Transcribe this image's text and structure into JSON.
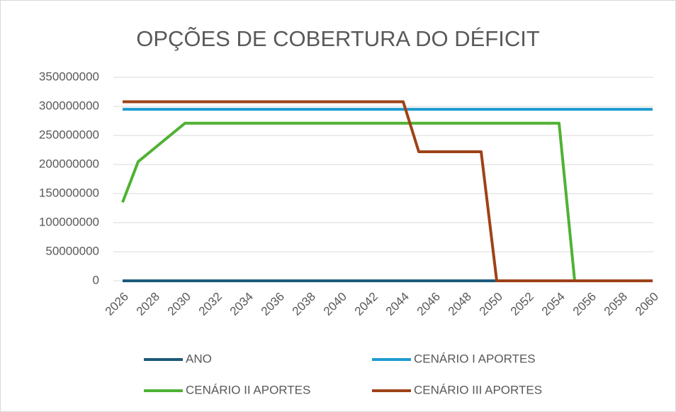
{
  "chart_data": {
    "type": "line",
    "title": "OPÇÕES DE COBERTURA DO DÉFICIT",
    "x": [
      2026,
      2027,
      2028,
      2029,
      2030,
      2031,
      2032,
      2033,
      2034,
      2035,
      2036,
      2037,
      2038,
      2039,
      2040,
      2041,
      2042,
      2043,
      2044,
      2045,
      2046,
      2047,
      2048,
      2049,
      2050,
      2051,
      2052,
      2053,
      2054,
      2055,
      2056,
      2057,
      2058,
      2059,
      2060
    ],
    "xlim": [
      2026,
      2060
    ],
    "xticks": [
      2026,
      2028,
      2030,
      2032,
      2034,
      2036,
      2038,
      2040,
      2042,
      2044,
      2046,
      2048,
      2050,
      2052,
      2054,
      2056,
      2058,
      2060
    ],
    "ylim": [
      0,
      350000000
    ],
    "yticks": [
      0,
      50000000,
      100000000,
      150000000,
      200000000,
      250000000,
      300000000,
      350000000
    ],
    "grid": true,
    "legend": "bottom",
    "series": [
      {
        "name": "ANO",
        "color": "#1d5a7a",
        "values": [
          0,
          0,
          0,
          0,
          0,
          0,
          0,
          0,
          0,
          0,
          0,
          0,
          0,
          0,
          0,
          0,
          0,
          0,
          0,
          0,
          0,
          0,
          0,
          0,
          0,
          0,
          0,
          0,
          0,
          0,
          0,
          0,
          0,
          0,
          0
        ]
      },
      {
        "name": "CENÁRIO I APORTES",
        "color": "#1f9bd1",
        "values": [
          295000000,
          295000000,
          295000000,
          295000000,
          295000000,
          295000000,
          295000000,
          295000000,
          295000000,
          295000000,
          295000000,
          295000000,
          295000000,
          295000000,
          295000000,
          295000000,
          295000000,
          295000000,
          295000000,
          295000000,
          295000000,
          295000000,
          295000000,
          295000000,
          295000000,
          295000000,
          295000000,
          295000000,
          295000000,
          295000000,
          295000000,
          295000000,
          295000000,
          295000000,
          295000000
        ]
      },
      {
        "name": "CENÁRIO II APORTES",
        "color": "#4fb233",
        "values": [
          135000000,
          205000000,
          227000000,
          249000000,
          271000000,
          271000000,
          271000000,
          271000000,
          271000000,
          271000000,
          271000000,
          271000000,
          271000000,
          271000000,
          271000000,
          271000000,
          271000000,
          271000000,
          271000000,
          271000000,
          271000000,
          271000000,
          271000000,
          271000000,
          271000000,
          271000000,
          271000000,
          271000000,
          271000000,
          0,
          0,
          0,
          0,
          0,
          0
        ]
      },
      {
        "name": "CENÁRIO III APORTES",
        "color": "#9e4218",
        "values": [
          308000000,
          308000000,
          308000000,
          308000000,
          308000000,
          308000000,
          308000000,
          308000000,
          308000000,
          308000000,
          308000000,
          308000000,
          308000000,
          308000000,
          308000000,
          308000000,
          308000000,
          308000000,
          308000000,
          222000000,
          222000000,
          222000000,
          222000000,
          222000000,
          0,
          0,
          0,
          0,
          0,
          0,
          0,
          0,
          0,
          0,
          0
        ]
      }
    ]
  }
}
